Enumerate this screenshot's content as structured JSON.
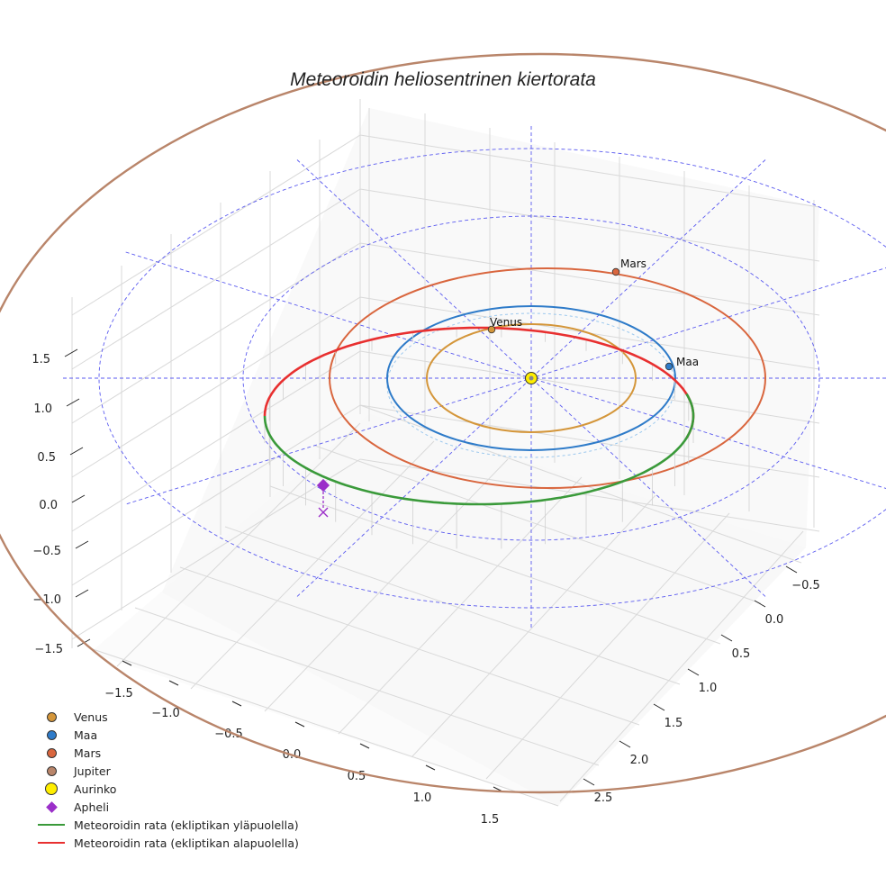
{
  "chart_data": {
    "type": "line3d",
    "title": "Meteoroidin heliosentrinen kiertorata",
    "x_ticks": [
      "−1.5",
      "−1.0",
      "−0.5",
      "0.0",
      "0.5",
      "1.0",
      "1.5"
    ],
    "y_ticks": [
      "−0.5",
      "0.0",
      "0.5",
      "1.0",
      "1.5",
      "2.0",
      "2.5"
    ],
    "z_ticks": [
      "−1.5",
      "−1.0",
      "−0.5",
      "0.0",
      "0.5",
      "1.0",
      "1.5"
    ],
    "planets": [
      {
        "name": "Venus",
        "orbit_radius_au": 0.72,
        "color": "#d4963a"
      },
      {
        "name": "Maa",
        "orbit_radius_au": 1.0,
        "color": "#2e7bc9"
      },
      {
        "name": "Mars",
        "orbit_radius_au": 1.52,
        "color": "#d9663e"
      },
      {
        "name": "Jupiter",
        "orbit_radius_au": 5.2,
        "color": "#b9856a"
      }
    ],
    "sun": {
      "name": "Aurinko",
      "color": "#ffee00"
    },
    "meteoroid_orbit": {
      "perihelion_au": 1.0,
      "aphelion_au": 2.45,
      "color_above": "#3a9a3a",
      "color_below": "#e83030"
    },
    "aphelion_marker": {
      "name": "Apheli",
      "color": "#9b2fc9"
    },
    "grid": true
  },
  "legend": [
    {
      "label": "Venus",
      "kind": "dot",
      "color": "#d4963a"
    },
    {
      "label": "Maa",
      "kind": "dot",
      "color": "#2e7bc9"
    },
    {
      "label": "Mars",
      "kind": "dot",
      "color": "#d9663e"
    },
    {
      "label": "Jupiter",
      "kind": "dot",
      "color": "#b9856a"
    },
    {
      "label": "Aurinko",
      "kind": "sun",
      "color": "#ffee00"
    },
    {
      "label": "Apheli",
      "kind": "diamond",
      "color": "#9b2fc9"
    },
    {
      "label": "Meteoroidin rata (ekliptikan yläpuolella)",
      "kind": "line",
      "color": "#3a9a3a"
    },
    {
      "label": "Meteoroidin rata (ekliptikan alapuolella)",
      "kind": "line",
      "color": "#e83030"
    }
  ]
}
